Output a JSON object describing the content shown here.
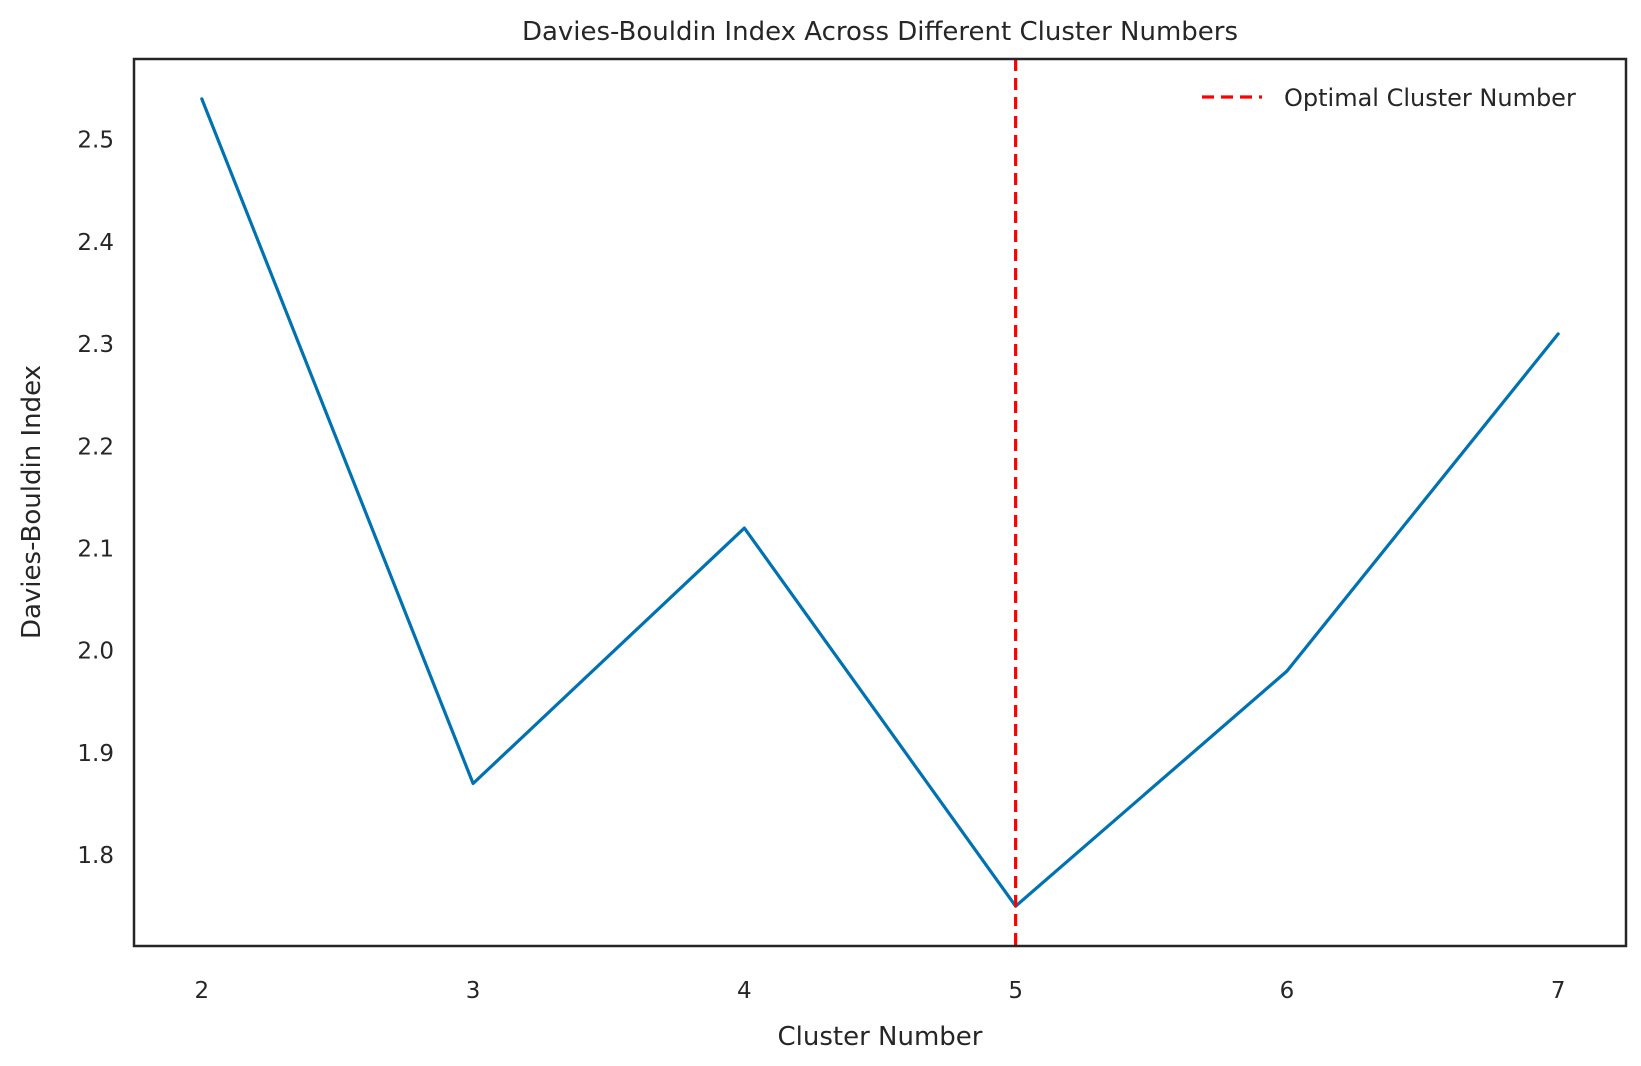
{
  "chart_data": {
    "type": "line",
    "title": "Davies-Bouldin Index Across Different Cluster Numbers",
    "xlabel": "Cluster Number",
    "ylabel": "Davies-Bouldin Index",
    "x": [
      2,
      3,
      4,
      5,
      6,
      7
    ],
    "x_tick_labels": [
      "2",
      "3",
      "4",
      "5",
      "6",
      "7"
    ],
    "y_ticks": [
      1.8,
      1.9,
      2.0,
      2.1,
      2.2,
      2.3,
      2.4,
      2.5
    ],
    "y_tick_labels": [
      "1.8",
      "1.9",
      "2.0",
      "2.1",
      "2.2",
      "2.3",
      "2.4",
      "2.5"
    ],
    "xlim": [
      1.75,
      7.25
    ],
    "ylim": [
      1.711,
      2.579
    ],
    "series": [
      {
        "values": [
          2.54,
          1.87,
          2.12,
          1.75,
          1.98,
          2.31
        ],
        "color": "#0072b2",
        "style": "solid"
      }
    ],
    "reference_lines": [
      {
        "orientation": "vertical",
        "x": 5,
        "label": "Optimal Cluster Number",
        "color": "#ff0000",
        "style": "dashed"
      }
    ],
    "legend": {
      "placement": "top-right",
      "entries": [
        "Optimal Cluster Number"
      ]
    },
    "grid": false,
    "colors": {
      "axes": "#262626",
      "background": "#ffffff"
    }
  }
}
